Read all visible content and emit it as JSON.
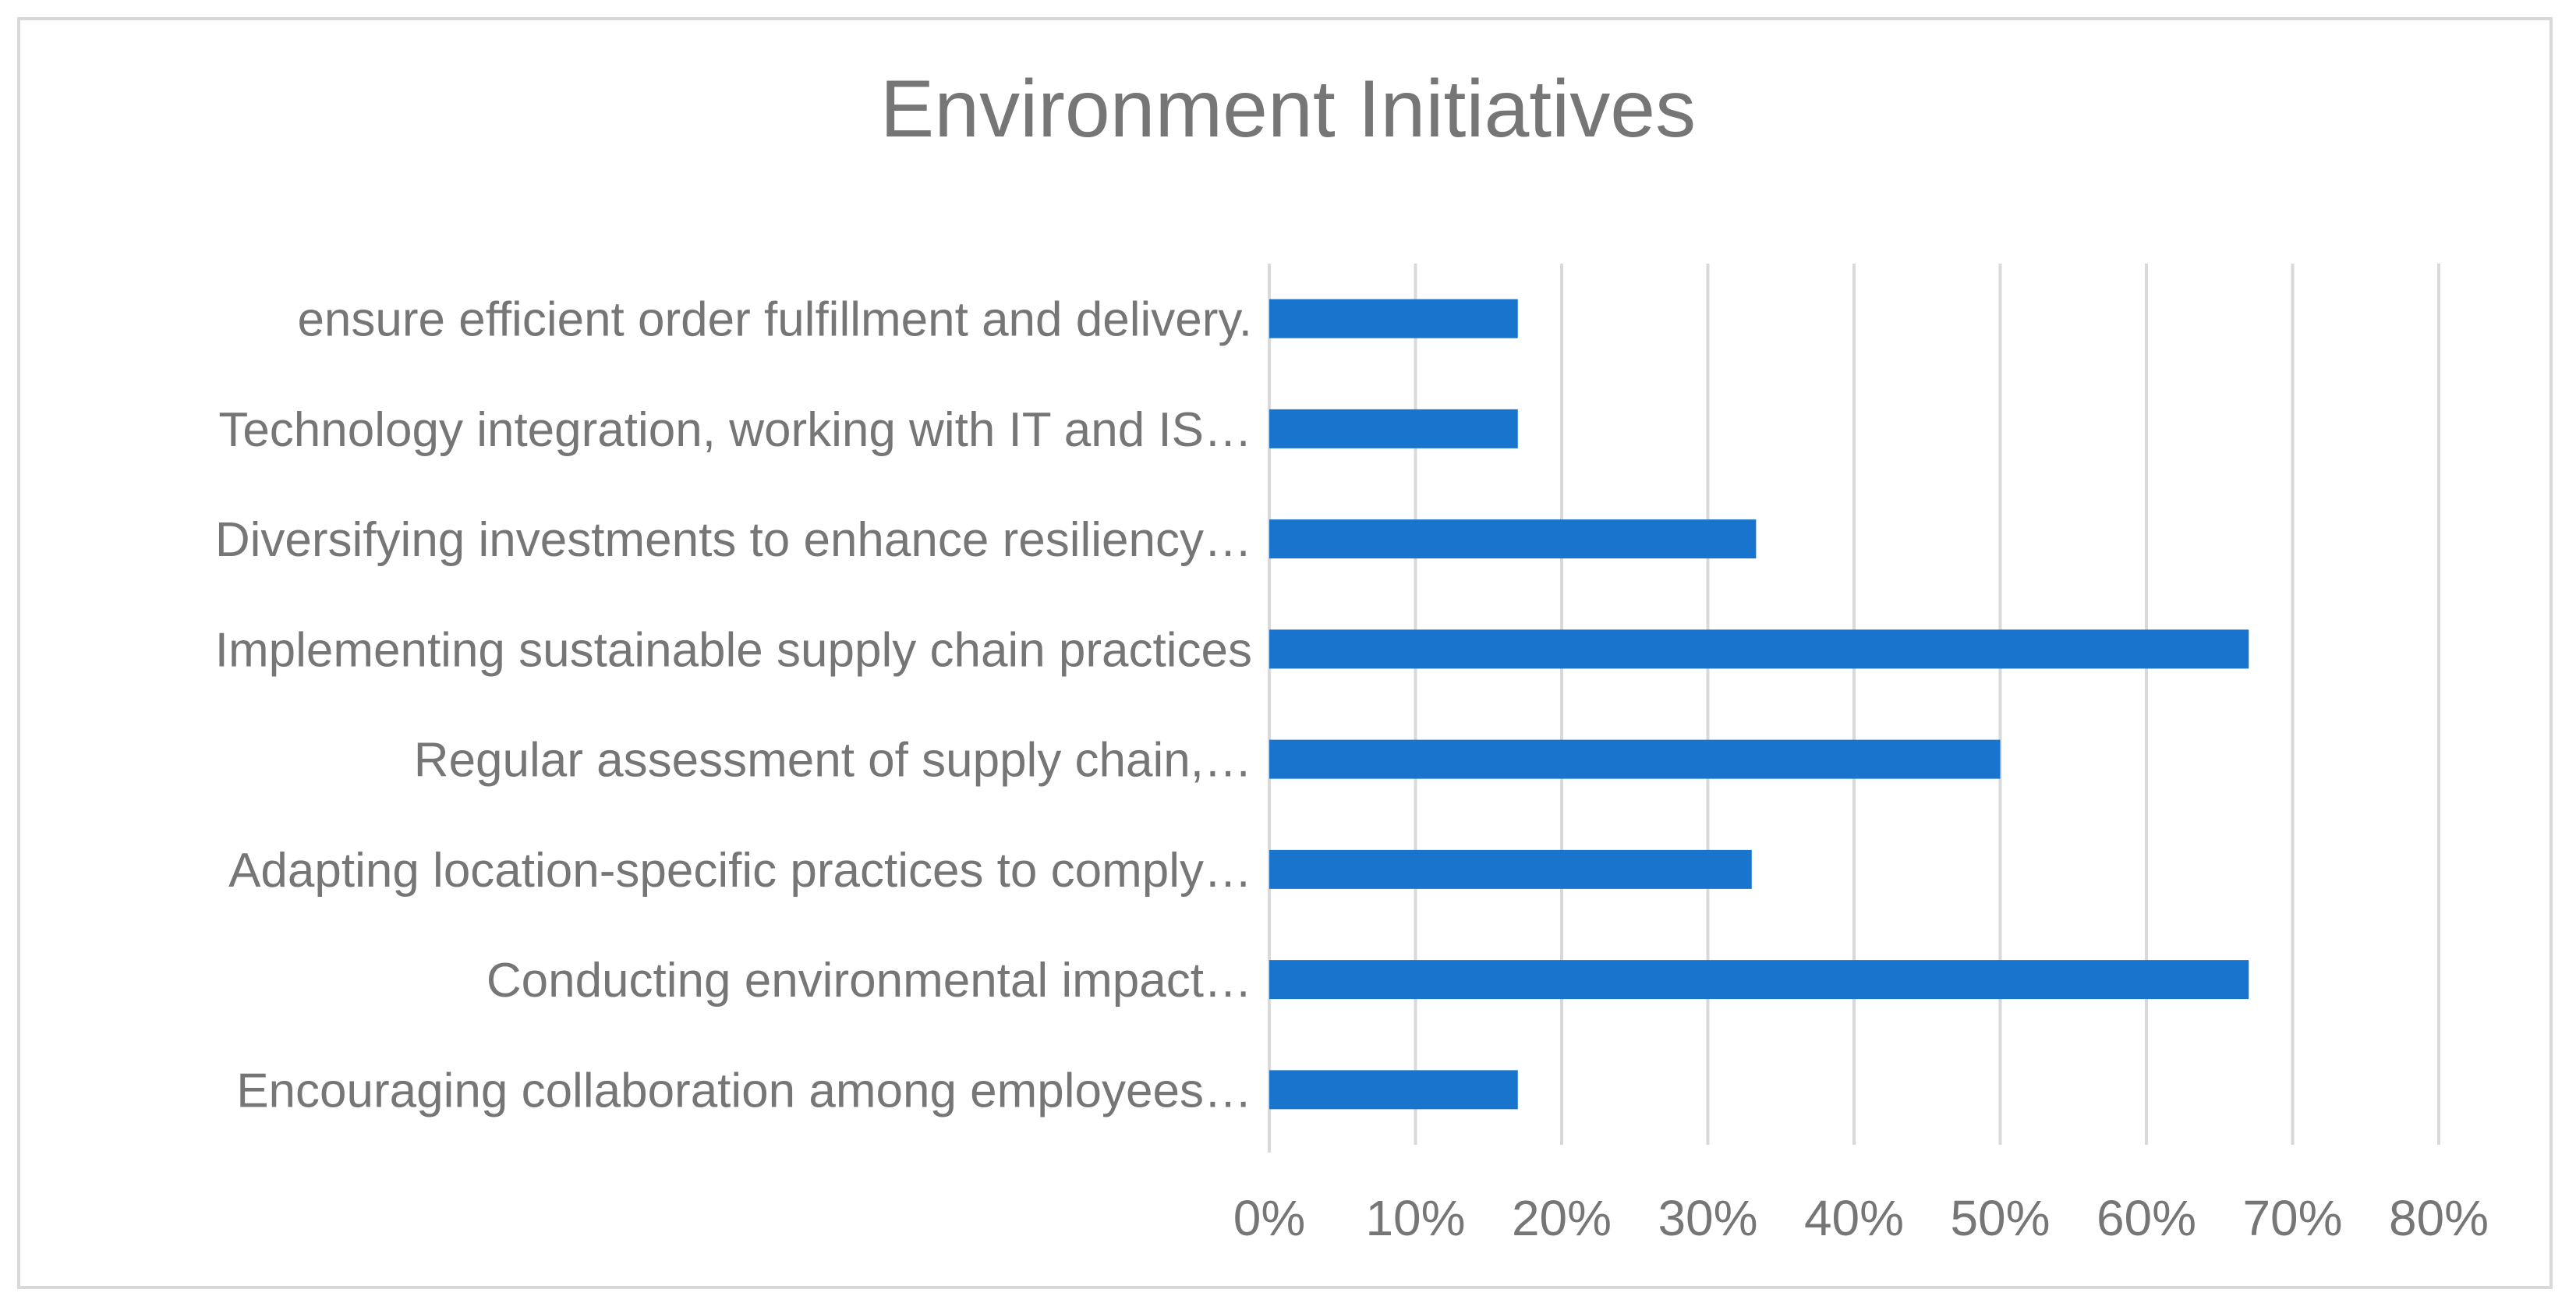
{
  "chart_data": {
    "type": "bar",
    "orientation": "horizontal",
    "title": "Environment Initiatives",
    "xlabel": "",
    "ylabel": "",
    "categories": [
      "Encouraging collaboration among employees…",
      "Conducting environmental impact…",
      "Adapting location-specific practices to comply…",
      "Regular assessment of supply chain,…",
      "Implementing sustainable supply chain practices",
      "Diversifying investments to enhance resiliency…",
      "Technology integration, working with IT and IS…",
      "ensure efficient order fulfillment and delivery."
    ],
    "values": [
      17,
      67,
      33,
      50,
      67,
      33.3,
      17,
      17
    ],
    "xlim": [
      0,
      80
    ],
    "xticks": [
      "0%",
      "10%",
      "20%",
      "30%",
      "40%",
      "50%",
      "60%",
      "70%",
      "80%"
    ],
    "grid": "vertical",
    "legend": "none",
    "bar_color": "#1874CD",
    "grid_color": "#d9d9d9"
  }
}
